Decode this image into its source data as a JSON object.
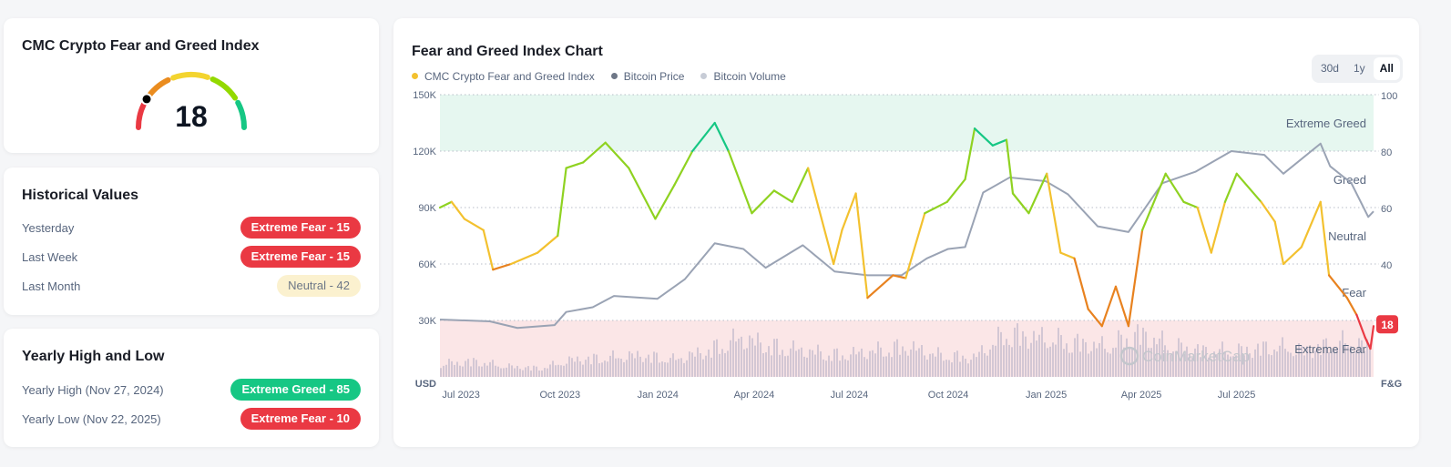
{
  "gauge_card": {
    "title": "CMC Crypto Fear and Greed Index",
    "value": "18",
    "value_num": 18,
    "colors": [
      "#ea3943",
      "#ea8c1f",
      "#f3d42f",
      "#93d900",
      "#16c784"
    ]
  },
  "historical": {
    "title": "Historical Values",
    "rows": [
      {
        "label": "Yesterday",
        "badge": "Extreme Fear - 15",
        "tone": "red"
      },
      {
        "label": "Last Week",
        "badge": "Extreme Fear - 15",
        "tone": "red"
      },
      {
        "label": "Last Month",
        "badge": "Neutral - 42",
        "tone": "neu"
      }
    ]
  },
  "yearly": {
    "title": "Yearly High and Low",
    "rows": [
      {
        "label": "Yearly High",
        "date": "(Nov 27, 2024)",
        "badge": "Extreme Greed - 85",
        "tone": "green"
      },
      {
        "label": "Yearly Low",
        "date": "(Nov 22, 2025)",
        "badge": "Extreme Fear - 10",
        "tone": "red"
      }
    ]
  },
  "chart_card": {
    "title": "Fear and Greed Index Chart",
    "ranges": [
      "30d",
      "1y",
      "All"
    ],
    "active_range": "All",
    "legend": [
      {
        "name": "CMC Crypto Fear and Greed Index",
        "color": "#f3c12f"
      },
      {
        "name": "Bitcoin Price",
        "color": "#6e7787"
      },
      {
        "name": "Bitcoin Volume",
        "color": "#c7ccd6"
      }
    ],
    "watermark": "CoinMarketCap"
  },
  "chart_data": {
    "type": "line",
    "left_axis": {
      "label": "USD",
      "ticks": [
        "150K",
        "120K",
        "90K",
        "60K",
        "30K"
      ],
      "range": [
        0,
        150000
      ]
    },
    "right_axis": {
      "label": "F&G",
      "ticks": [
        "100",
        "80",
        "60",
        "40"
      ],
      "range": [
        0,
        100
      ]
    },
    "x_ticks": [
      {
        "label": "Jul 2023",
        "date": "2023-07-01"
      },
      {
        "label": "Oct 2023",
        "date": "2023-10-01"
      },
      {
        "label": "Jan 2024",
        "date": "2024-01-01"
      },
      {
        "label": "Apr 2024",
        "date": "2024-04-01"
      },
      {
        "label": "Jul 2024",
        "date": "2024-07-01"
      },
      {
        "label": "Oct 2024",
        "date": "2024-10-01"
      },
      {
        "label": "Jan 2025",
        "date": "2025-01-01"
      },
      {
        "label": "Apr 2025",
        "date": "2025-04-01"
      },
      {
        "label": "Jul 2025",
        "date": "2025-07-01"
      }
    ],
    "x_range": [
      "2023-06-29",
      "2025-11-25"
    ],
    "zones": [
      {
        "name": "Extreme Greed",
        "range": [
          80,
          100
        ],
        "fill": "#e6f7f0"
      },
      {
        "name": "Greed",
        "range": [
          60,
          80
        ]
      },
      {
        "name": "Neutral",
        "range": [
          40,
          60
        ]
      },
      {
        "name": "Fear",
        "range": [
          20,
          40
        ]
      },
      {
        "name": "Extreme Fear",
        "range": [
          0,
          20
        ],
        "fill": "#fbe6e7"
      }
    ],
    "current_badge": "18",
    "grid": true,
    "series": [
      {
        "name": "CMC Crypto Fear and Greed Index",
        "axis": "right",
        "points": [
          [
            "2023-06-29",
            60
          ],
          [
            "2023-07-10",
            62
          ],
          [
            "2023-07-22",
            56
          ],
          [
            "2023-08-09",
            52
          ],
          [
            "2023-08-18",
            38
          ],
          [
            "2023-09-04",
            40
          ],
          [
            "2023-09-29",
            44
          ],
          [
            "2023-10-18",
            50
          ],
          [
            "2023-10-26",
            74
          ],
          [
            "2023-11-11",
            76
          ],
          [
            "2023-12-02",
            83
          ],
          [
            "2023-12-24",
            74
          ],
          [
            "2024-01-18",
            56
          ],
          [
            "2024-02-05",
            68
          ],
          [
            "2024-02-22",
            80
          ],
          [
            "2024-03-14",
            90
          ],
          [
            "2024-03-27",
            80
          ],
          [
            "2024-04-18",
            58
          ],
          [
            "2024-05-09",
            66
          ],
          [
            "2024-05-26",
            62
          ],
          [
            "2024-06-10",
            74
          ],
          [
            "2024-07-04",
            40
          ],
          [
            "2024-07-12",
            52
          ],
          [
            "2024-07-25",
            65
          ],
          [
            "2024-08-05",
            28
          ],
          [
            "2024-08-29",
            36
          ],
          [
            "2024-09-10",
            35
          ],
          [
            "2024-09-28",
            58
          ],
          [
            "2024-10-19",
            62
          ],
          [
            "2024-11-05",
            70
          ],
          [
            "2024-11-14",
            88
          ],
          [
            "2024-12-01",
            82
          ],
          [
            "2024-12-14",
            84
          ],
          [
            "2024-12-20",
            65
          ],
          [
            "2025-01-04",
            58
          ],
          [
            "2025-01-21",
            72
          ],
          [
            "2025-02-03",
            44
          ],
          [
            "2025-02-16",
            42
          ],
          [
            "2025-03-01",
            24
          ],
          [
            "2025-03-14",
            18
          ],
          [
            "2025-03-27",
            32
          ],
          [
            "2025-04-08",
            18
          ],
          [
            "2025-04-21",
            52
          ],
          [
            "2025-05-13",
            72
          ],
          [
            "2025-05-30",
            62
          ],
          [
            "2025-06-12",
            60
          ],
          [
            "2025-06-25",
            44
          ],
          [
            "2025-07-08",
            62
          ],
          [
            "2025-07-19",
            72
          ],
          [
            "2025-08-11",
            62
          ],
          [
            "2025-08-24",
            55
          ],
          [
            "2025-09-01",
            40
          ],
          [
            "2025-09-18",
            46
          ],
          [
            "2025-10-06",
            62
          ],
          [
            "2025-10-14",
            36
          ],
          [
            "2025-10-31",
            28
          ],
          [
            "2025-11-09",
            22
          ],
          [
            "2025-11-17",
            14
          ],
          [
            "2025-11-22",
            10
          ],
          [
            "2025-11-25",
            18
          ]
        ]
      },
      {
        "name": "Bitcoin Price",
        "axis": "left",
        "color": "#9aa3b4",
        "points": [
          [
            "2023-06-29",
            30500
          ],
          [
            "2023-08-15",
            29500
          ],
          [
            "2023-09-10",
            26000
          ],
          [
            "2023-10-15",
            27500
          ],
          [
            "2023-10-26",
            34500
          ],
          [
            "2023-11-20",
            37000
          ],
          [
            "2023-12-10",
            43000
          ],
          [
            "2024-01-20",
            41500
          ],
          [
            "2024-02-15",
            52000
          ],
          [
            "2024-03-14",
            71000
          ],
          [
            "2024-04-10",
            68000
          ],
          [
            "2024-05-01",
            58000
          ],
          [
            "2024-06-05",
            70000
          ],
          [
            "2024-07-05",
            56000
          ],
          [
            "2024-08-05",
            54000
          ],
          [
            "2024-09-06",
            54000
          ],
          [
            "2024-09-30",
            63000
          ],
          [
            "2024-10-20",
            68000
          ],
          [
            "2024-11-05",
            69000
          ],
          [
            "2024-11-22",
            98000
          ],
          [
            "2024-12-17",
            106000
          ],
          [
            "2025-01-20",
            104000
          ],
          [
            "2025-02-10",
            97000
          ],
          [
            "2025-03-10",
            80000
          ],
          [
            "2025-04-08",
            77000
          ],
          [
            "2025-05-10",
            103000
          ],
          [
            "2025-06-10",
            109000
          ],
          [
            "2025-07-14",
            120000
          ],
          [
            "2025-08-14",
            118000
          ],
          [
            "2025-09-01",
            108000
          ],
          [
            "2025-10-06",
            124000
          ],
          [
            "2025-10-15",
            112000
          ],
          [
            "2025-11-04",
            103000
          ],
          [
            "2025-11-20",
            85000
          ],
          [
            "2025-11-25",
            88000
          ]
        ]
      },
      {
        "name": "Bitcoin Volume",
        "axis": "none",
        "color": "#c9bfd0",
        "monthly_relative": [
          0.15,
          0.18,
          0.12,
          0.1,
          0.2,
          0.22,
          0.25,
          0.2,
          0.3,
          0.45,
          0.35,
          0.3,
          0.25,
          0.3,
          0.35,
          0.25,
          0.22,
          0.5,
          0.45,
          0.4,
          0.35,
          0.5,
          0.35,
          0.3,
          0.3,
          0.35,
          0.3,
          0.4,
          0.35
        ]
      }
    ]
  }
}
